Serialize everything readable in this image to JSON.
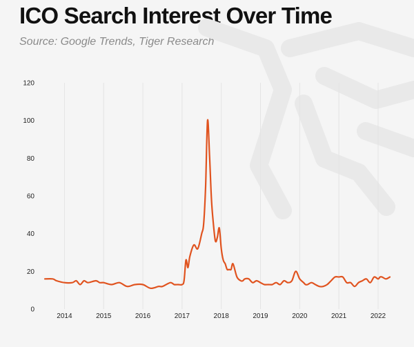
{
  "header": {
    "title": "ICO Search Interest Over Time",
    "subtitle": "Source: Google Trends, Tiger Research"
  },
  "colors": {
    "line": "#e0531f",
    "grid": "#e4e4e4",
    "background": "#f5f5f5",
    "watermark": "#e9e9e9"
  },
  "chart_data": {
    "type": "line",
    "title": "ICO Search Interest Over Time",
    "subtitle": "Source: Google Trends, Tiger Research",
    "xlabel": "",
    "ylabel": "",
    "xlim": [
      2013.5,
      2022.3
    ],
    "ylim": [
      0,
      120
    ],
    "yticks": [
      0,
      20,
      40,
      60,
      80,
      100,
      120
    ],
    "xticks": [
      2014,
      2015,
      2016,
      2017,
      2018,
      2019,
      2020,
      2021,
      2022
    ],
    "xtick_labels": [
      "2014",
      "2015",
      "2016",
      "2017",
      "2018",
      "2019",
      "2020",
      "2021",
      "2022"
    ],
    "grid": "vertical",
    "legend": "none",
    "series": [
      {
        "x": [
          2013.5,
          2013.7,
          2013.8,
          2014.0,
          2014.2,
          2014.3,
          2014.4,
          2014.5,
          2014.6,
          2014.8,
          2014.9,
          2015.0,
          2015.2,
          2015.4,
          2015.6,
          2015.8,
          2016.0,
          2016.2,
          2016.4,
          2016.5,
          2016.7,
          2016.8,
          2016.9,
          2017.0,
          2017.05,
          2017.1,
          2017.15,
          2017.2,
          2017.3,
          2017.4,
          2017.5,
          2017.55,
          2017.6,
          2017.65,
          2017.7,
          2017.75,
          2017.8,
          2017.85,
          2017.9,
          2017.95,
          2018.0,
          2018.05,
          2018.1,
          2018.15,
          2018.2,
          2018.25,
          2018.3,
          2018.4,
          2018.5,
          2018.55,
          2018.6,
          2018.7,
          2018.8,
          2018.9,
          2019.0,
          2019.1,
          2019.2,
          2019.3,
          2019.4,
          2019.5,
          2019.6,
          2019.7,
          2019.8,
          2019.9,
          2020.0,
          2020.1,
          2020.15,
          2020.2,
          2020.3,
          2020.4,
          2020.5,
          2020.6,
          2020.7,
          2020.8,
          2020.9,
          2021.0,
          2021.1,
          2021.2,
          2021.3,
          2021.4,
          2021.5,
          2021.6,
          2021.7,
          2021.8,
          2021.9,
          2022.0,
          2022.05,
          2022.1,
          2022.2,
          2022.3
        ],
        "values": [
          16,
          16,
          15,
          14,
          14,
          15,
          13,
          15,
          14,
          15,
          14,
          14,
          13,
          14,
          12,
          13,
          13,
          11,
          12,
          12,
          14,
          13,
          13,
          13,
          15,
          26,
          22,
          28,
          34,
          32,
          40,
          45,
          65,
          100,
          82,
          58,
          45,
          36,
          38,
          43,
          32,
          26,
          24,
          21,
          21,
          21,
          24,
          17,
          15,
          15,
          16,
          16,
          14,
          15,
          14,
          13,
          13,
          13,
          14,
          13,
          15,
          14,
          15,
          20,
          16,
          14,
          13,
          13,
          14,
          13,
          12,
          12,
          13,
          15,
          17,
          17,
          17,
          14,
          14,
          12,
          14,
          15,
          16,
          14,
          17,
          16,
          17,
          17,
          16,
          17
        ]
      }
    ]
  }
}
